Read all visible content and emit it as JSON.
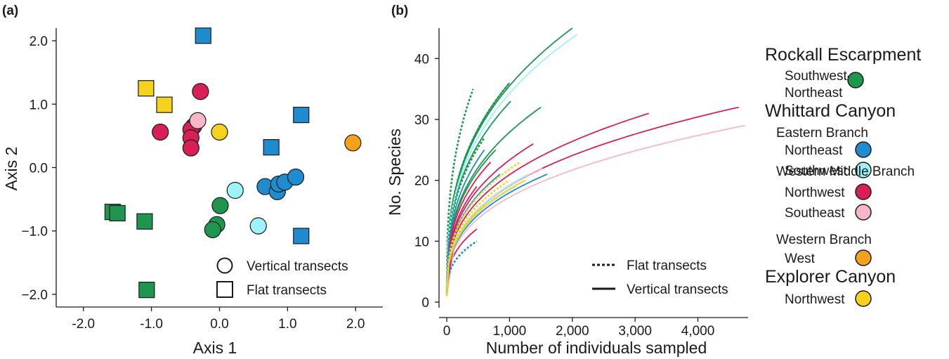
{
  "colors": {
    "rockall_sw_ne": "#1f9650",
    "whittard_eb_ne": "#1f8cd0",
    "whittard_eb_sw": "#9ef3f8",
    "whittard_wmb_nw": "#d81f57",
    "whittard_wmb_se": "#f8b6c8",
    "whittard_wb_w": "#f7a01c",
    "explorer_nw": "#f7d21c"
  },
  "legend": {
    "rockall": {
      "title": "Rockall Escarpment",
      "sw_ne_line1": "Southwest-",
      "sw_ne_line2": "Northeast"
    },
    "whittard": {
      "title": "Whittard Canyon",
      "eastern": "Eastern Branch",
      "eastern_ne": "Northeast",
      "eastern_sw": "Southwest",
      "western_middle": "Western Middle Branch",
      "wmb_nw": "Northwest",
      "wmb_se": "Southeast",
      "western": "Western Branch",
      "wb_w": "West"
    },
    "explorer": {
      "title": "Explorer Canyon",
      "nw": "Northwest"
    }
  },
  "panel_a": {
    "label": "(a)",
    "legend_vertical": "Vertical transects",
    "legend_flat": "Flat transects"
  },
  "panel_b": {
    "label": "(b)",
    "legend_flat": "Flat transects",
    "legend_vertical": "Vertical transects"
  },
  "chart_data": [
    {
      "type": "scatter",
      "title": "(a)",
      "xlabel": "Axis 1",
      "ylabel": "Axis 2",
      "xlim": [
        -2.4,
        2.4
      ],
      "ylim": [
        -2.2,
        2.2
      ],
      "x_ticks": [
        -2.0,
        -1.0,
        0.0,
        1.0,
        2.0
      ],
      "x_tick_labels": [
        "-2.0",
        "-1.0",
        "0.0",
        "1.0",
        "2.0"
      ],
      "y_ticks": [
        -2.0,
        -1.0,
        0.0,
        1.0,
        2.0
      ],
      "y_tick_labels": [
        "−2.0",
        "−1.0",
        "0.0",
        "1.0",
        "2.0"
      ],
      "legend_placement": "bottom-right",
      "points": [
        {
          "x": -0.24,
          "y": 2.08,
          "shape": "square",
          "group": "whittard_eb_ne"
        },
        {
          "x": 1.2,
          "y": 0.83,
          "shape": "square",
          "group": "whittard_eb_ne"
        },
        {
          "x": 0.76,
          "y": 0.32,
          "shape": "square",
          "group": "whittard_eb_ne"
        },
        {
          "x": 1.2,
          "y": -1.08,
          "shape": "square",
          "group": "whittard_eb_ne"
        },
        {
          "x": -1.08,
          "y": 1.25,
          "shape": "square",
          "group": "explorer_nw"
        },
        {
          "x": -0.81,
          "y": 0.99,
          "shape": "square",
          "group": "explorer_nw"
        },
        {
          "x": -1.57,
          "y": -0.7,
          "shape": "square",
          "group": "rockall_sw_ne"
        },
        {
          "x": -1.5,
          "y": -0.72,
          "shape": "square",
          "group": "rockall_sw_ne"
        },
        {
          "x": -1.1,
          "y": -0.85,
          "shape": "square",
          "group": "rockall_sw_ne"
        },
        {
          "x": -1.07,
          "y": -1.93,
          "shape": "square",
          "group": "rockall_sw_ne"
        },
        {
          "x": -0.28,
          "y": 1.2,
          "shape": "circle",
          "group": "whittard_wmb_nw"
        },
        {
          "x": -0.87,
          "y": 0.56,
          "shape": "circle",
          "group": "whittard_wmb_nw"
        },
        {
          "x": -0.38,
          "y": 0.65,
          "shape": "circle",
          "group": "whittard_wmb_nw"
        },
        {
          "x": -0.42,
          "y": 0.6,
          "shape": "circle",
          "group": "whittard_wmb_nw"
        },
        {
          "x": -0.42,
          "y": 0.47,
          "shape": "circle",
          "group": "whittard_wmb_nw"
        },
        {
          "x": -0.42,
          "y": 0.31,
          "shape": "circle",
          "group": "whittard_wmb_nw"
        },
        {
          "x": -0.32,
          "y": 0.74,
          "shape": "circle",
          "group": "whittard_wmb_se"
        },
        {
          "x": 0.0,
          "y": 0.56,
          "shape": "circle",
          "group": "explorer_nw"
        },
        {
          "x": 1.96,
          "y": 0.39,
          "shape": "circle",
          "group": "whittard_wb_w"
        },
        {
          "x": 0.23,
          "y": -0.36,
          "shape": "circle",
          "group": "whittard_eb_sw"
        },
        {
          "x": 0.57,
          "y": -0.92,
          "shape": "circle",
          "group": "whittard_eb_sw"
        },
        {
          "x": 0.01,
          "y": -0.6,
          "shape": "circle",
          "group": "rockall_sw_ne"
        },
        {
          "x": -0.04,
          "y": -0.9,
          "shape": "circle",
          "group": "rockall_sw_ne"
        },
        {
          "x": -0.1,
          "y": -0.98,
          "shape": "circle",
          "group": "rockall_sw_ne"
        },
        {
          "x": 0.67,
          "y": -0.3,
          "shape": "circle",
          "group": "whittard_eb_ne"
        },
        {
          "x": 0.85,
          "y": -0.38,
          "shape": "circle",
          "group": "whittard_eb_ne"
        },
        {
          "x": 0.87,
          "y": -0.26,
          "shape": "circle",
          "group": "whittard_eb_ne"
        },
        {
          "x": 0.96,
          "y": -0.23,
          "shape": "circle",
          "group": "whittard_eb_ne"
        },
        {
          "x": 1.12,
          "y": -0.15,
          "shape": "circle",
          "group": "whittard_eb_ne"
        }
      ]
    },
    {
      "type": "line",
      "title": "(b)",
      "xlabel": "Number of individuals sampled",
      "ylabel": "No. Species",
      "xlim": [
        0,
        4800
      ],
      "ylim": [
        0,
        45
      ],
      "x_ticks": [
        0,
        1000,
        2000,
        3000,
        4000
      ],
      "x_tick_labels": [
        "0",
        "1,000",
        "2,000",
        "3,000",
        "4,000"
      ],
      "y_ticks": [
        0,
        10,
        20,
        30,
        40
      ],
      "y_tick_labels": [
        "0",
        "10",
        "20",
        "30",
        "40"
      ],
      "legend_placement": "bottom-right",
      "series": [
        {
          "group": "rockall_sw_ne",
          "style": "vertical",
          "x_end": 2000,
          "y_end": 45
        },
        {
          "group": "whittard_eb_sw",
          "style": "vertical",
          "x_end": 2080,
          "y_end": 44
        },
        {
          "group": "rockall_sw_ne",
          "style": "vertical",
          "x_end": 1000,
          "y_end": 36
        },
        {
          "group": "rockall_sw_ne",
          "style": "vertical",
          "x_end": 1020,
          "y_end": 33
        },
        {
          "group": "rockall_sw_ne",
          "style": "vertical",
          "x_end": 1500,
          "y_end": 32
        },
        {
          "group": "rockall_sw_ne",
          "style": "vertical",
          "x_end": 780,
          "y_end": 25
        },
        {
          "group": "rockall_sw_ne",
          "style": "flat",
          "x_end": 420,
          "y_end": 35
        },
        {
          "group": "rockall_sw_ne",
          "style": "flat",
          "x_end": 1000,
          "y_end": 36
        },
        {
          "group": "rockall_sw_ne",
          "style": "flat",
          "x_end": 600,
          "y_end": 27
        },
        {
          "group": "whittard_eb_sw",
          "style": "flat",
          "x_end": 750,
          "y_end": 31
        },
        {
          "group": "whittard_wmb_nw",
          "style": "vertical",
          "x_end": 4650,
          "y_end": 32
        },
        {
          "group": "whittard_wmb_nw",
          "style": "vertical",
          "x_end": 3220,
          "y_end": 31
        },
        {
          "group": "whittard_wmb_nw",
          "style": "vertical",
          "x_end": 1380,
          "y_end": 26
        },
        {
          "group": "whittard_wmb_nw",
          "style": "vertical",
          "x_end": 700,
          "y_end": 23
        },
        {
          "group": "whittard_wmb_nw",
          "style": "vertical",
          "x_end": 480,
          "y_end": 19
        },
        {
          "group": "whittard_wmb_nw",
          "style": "vertical",
          "x_end": 480,
          "y_end": 12
        },
        {
          "group": "whittard_wmb_se",
          "style": "vertical",
          "x_end": 4750,
          "y_end": 29
        },
        {
          "group": "whittard_wmb_se",
          "style": "vertical",
          "x_end": 1520,
          "y_end": 22
        },
        {
          "group": "whittard_eb_ne",
          "style": "vertical",
          "x_end": 1600,
          "y_end": 21
        },
        {
          "group": "whittard_eb_ne",
          "style": "vertical",
          "x_end": 850,
          "y_end": 21
        },
        {
          "group": "whittard_eb_ne",
          "style": "vertical",
          "x_end": 600,
          "y_end": 25
        },
        {
          "group": "whittard_eb_sw",
          "style": "vertical",
          "x_end": 1300,
          "y_end": 21
        },
        {
          "group": "whittard_eb_sw",
          "style": "vertical",
          "x_end": 1100,
          "y_end": 19
        },
        {
          "group": "whittard_eb_ne",
          "style": "flat",
          "x_end": 480,
          "y_end": 10
        },
        {
          "group": "explorer_nw",
          "style": "flat",
          "x_end": 1170,
          "y_end": 23
        },
        {
          "group": "explorer_nw",
          "style": "flat",
          "x_end": 1000,
          "y_end": 20
        },
        {
          "group": "explorer_nw",
          "style": "flat",
          "x_end": 600,
          "y_end": 16
        },
        {
          "group": "explorer_nw",
          "style": "vertical",
          "x_end": 1250,
          "y_end": 20
        }
      ]
    }
  ]
}
